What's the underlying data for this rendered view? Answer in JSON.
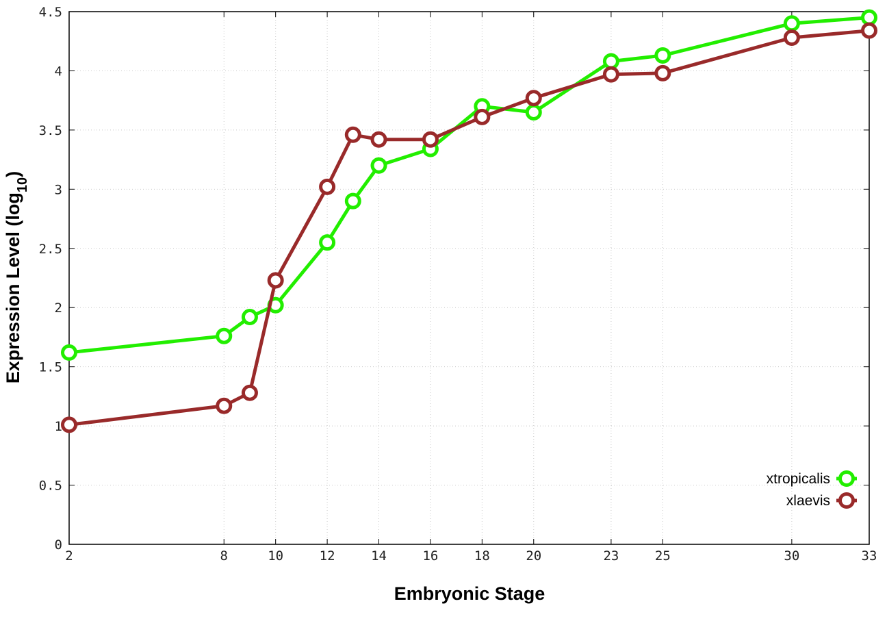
{
  "chart_data": {
    "type": "line",
    "xlabel": "Embryonic Stage",
    "ylabel_main": "Expression Level (log",
    "ylabel_sub": "10",
    "ylabel_close": ")",
    "xlim": [
      2,
      33
    ],
    "ylim": [
      0,
      4.5
    ],
    "grid": true,
    "legend_position": "bottom-right",
    "x": [
      2,
      8,
      9,
      10,
      12,
      13,
      14,
      16,
      18,
      20,
      23,
      25,
      30,
      33
    ],
    "x_ticks": [
      "2",
      "8",
      "10",
      "12",
      "14",
      "16",
      "18",
      "20",
      "23",
      "25",
      "30",
      "33"
    ],
    "y_ticks": [
      "0",
      "0.5",
      "1",
      "1.5",
      "2",
      "2.5",
      "3",
      "3.5",
      "4",
      "4.5"
    ],
    "series": [
      {
        "name": "xtropicalis",
        "color": "#22ee00",
        "values": [
          1.62,
          1.76,
          1.92,
          2.02,
          2.55,
          2.9,
          3.2,
          3.34,
          3.7,
          3.65,
          4.08,
          4.13,
          4.4,
          4.45
        ]
      },
      {
        "name": "xlaevis",
        "color": "#992a2a",
        "values": [
          1.01,
          1.17,
          1.28,
          2.23,
          3.02,
          3.46,
          3.42,
          3.42,
          3.61,
          3.77,
          3.97,
          3.98,
          4.28,
          4.34
        ]
      }
    ]
  }
}
